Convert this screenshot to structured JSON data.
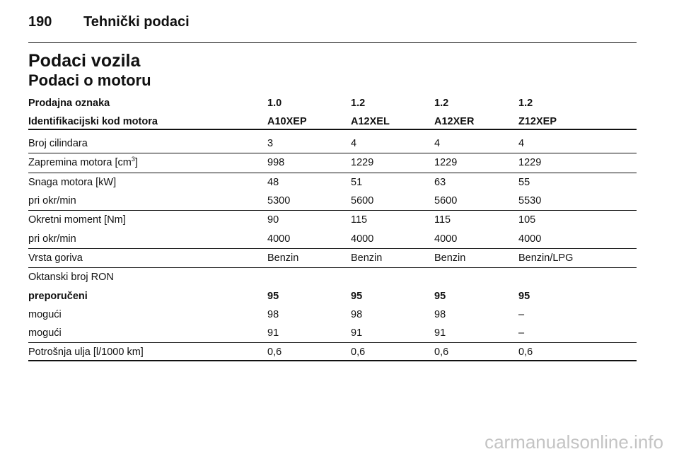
{
  "header": {
    "page_number": "190",
    "section": "Tehnički podaci"
  },
  "title": "Podaci vozila",
  "subtitle": "Podaci o motoru",
  "table": {
    "header_rows": [
      [
        "Prodajna oznaka",
        "1.0",
        "1.2",
        "1.2",
        "1.2"
      ],
      [
        "Identifikacijski kod motora",
        "A10XEP",
        "A12XEL",
        "A12XER",
        "Z12XEP"
      ]
    ],
    "groups": [
      {
        "rows": [
          {
            "label": [
              "Broj cilindara"
            ],
            "values": [
              "3",
              "4",
              "4",
              "4"
            ]
          }
        ]
      },
      {
        "rows": [
          {
            "label": [
              "Zapremina motora [cm",
              "3",
              "]"
            ],
            "values": [
              "998",
              "1229",
              "1229",
              "1229"
            ]
          }
        ]
      },
      {
        "rows": [
          {
            "label": [
              "Snaga motora [kW]"
            ],
            "values": [
              "48",
              "51",
              "63",
              "55"
            ]
          },
          {
            "label": [
              "pri okr/min"
            ],
            "values": [
              "5300",
              "5600",
              "5600",
              "5530"
            ]
          }
        ]
      },
      {
        "rows": [
          {
            "label": [
              "Okretni moment [Nm]"
            ],
            "values": [
              "90",
              "115",
              "115",
              "105"
            ]
          },
          {
            "label": [
              "pri okr/min"
            ],
            "values": [
              "4000",
              "4000",
              "4000",
              "4000"
            ]
          }
        ]
      },
      {
        "rows": [
          {
            "label": [
              "Vrsta goriva"
            ],
            "values": [
              "Benzin",
              "Benzin",
              "Benzin",
              "Benzin/LPG"
            ]
          }
        ]
      },
      {
        "rows": [
          {
            "label": [
              "Oktanski broj RON"
            ],
            "values": []
          },
          {
            "label": [
              "preporučeni"
            ],
            "values": [
              "95",
              "95",
              "95",
              "95"
            ],
            "strong": true
          },
          {
            "label": [
              "mogući"
            ],
            "values": [
              "98",
              "98",
              "98",
              "–"
            ]
          },
          {
            "label": [
              "mogući"
            ],
            "values": [
              "91",
              "91",
              "91",
              "–"
            ]
          }
        ]
      },
      {
        "rows": [
          {
            "label": [
              "Potrošnja ulja [l/1000 km]"
            ],
            "values": [
              "0,6",
              "0,6",
              "0,6",
              "0,6"
            ]
          }
        ]
      }
    ]
  },
  "watermark": "carmanualsonline.info"
}
